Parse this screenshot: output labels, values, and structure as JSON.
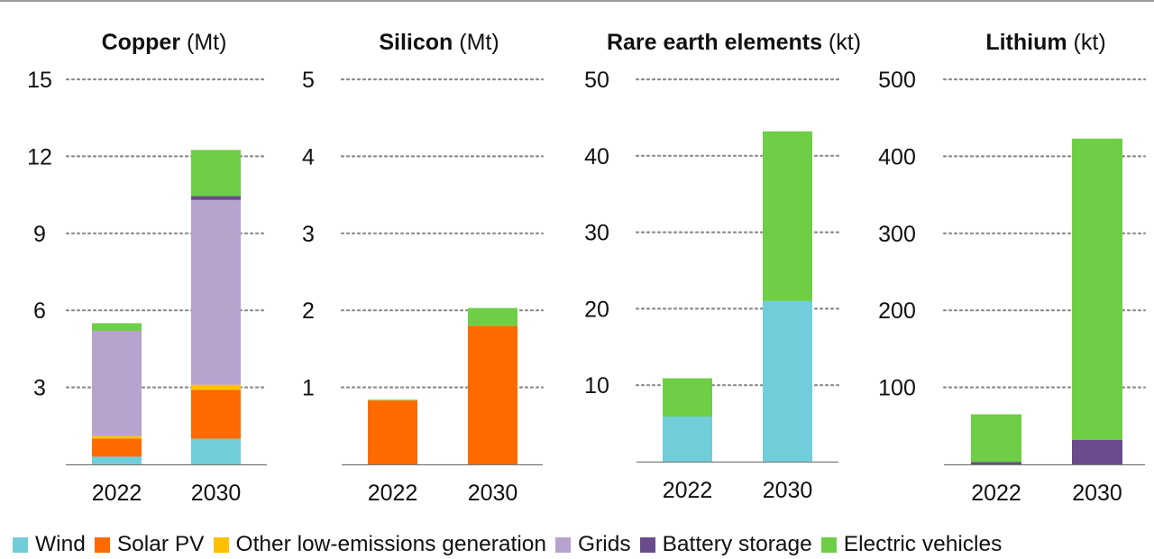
{
  "colors": {
    "Wind": "#72CDDB",
    "Solar PV": "#FF6A00",
    "Other low-emissions generation": "#FFC000",
    "Grids": "#B8A2CE",
    "Battery storage": "#6A4C8C",
    "Electric vehicles": "#6ECF46"
  },
  "legend": [
    {
      "label": "Wind",
      "key": "Wind"
    },
    {
      "label": "Solar PV",
      "key": "Solar PV"
    },
    {
      "label": "Other low-emissions generation",
      "key": "Other low-emissions generation"
    },
    {
      "label": "Grids",
      "key": "Grids"
    },
    {
      "label": "Battery storage",
      "key": "Battery storage"
    },
    {
      "label": "Electric vehicles",
      "key": "Electric vehicles"
    }
  ],
  "chart_data": [
    {
      "type": "bar",
      "stacked": true,
      "title_bold": "Copper",
      "title_unit": "(Mt)",
      "categories": [
        "2022",
        "2030"
      ],
      "ylim": [
        0,
        15
      ],
      "yticks": [
        3,
        6,
        9,
        12,
        15
      ],
      "grid": true,
      "series": [
        {
          "name": "Wind",
          "values": [
            0.3,
            1.0
          ]
        },
        {
          "name": "Solar PV",
          "values": [
            0.7,
            1.9
          ]
        },
        {
          "name": "Other low-emissions generation",
          "values": [
            0.1,
            0.2
          ]
        },
        {
          "name": "Grids",
          "values": [
            4.1,
            7.2
          ]
        },
        {
          "name": "Battery storage",
          "values": [
            0.0,
            0.15
          ]
        },
        {
          "name": "Electric vehicles",
          "values": [
            0.3,
            1.8
          ]
        }
      ]
    },
    {
      "type": "bar",
      "stacked": true,
      "title_bold": "Silicon",
      "title_unit": "(Mt)",
      "categories": [
        "2022",
        "2030"
      ],
      "ylim": [
        0,
        5
      ],
      "yticks": [
        1,
        2,
        3,
        4,
        5
      ],
      "grid": true,
      "series": [
        {
          "name": "Wind",
          "values": [
            0.0,
            0.0
          ]
        },
        {
          "name": "Solar PV",
          "values": [
            0.83,
            1.8
          ]
        },
        {
          "name": "Other low-emissions generation",
          "values": [
            0.0,
            0.0
          ]
        },
        {
          "name": "Grids",
          "values": [
            0.0,
            0.0
          ]
        },
        {
          "name": "Battery storage",
          "values": [
            0.0,
            0.0
          ]
        },
        {
          "name": "Electric vehicles",
          "values": [
            0.01,
            0.23
          ]
        }
      ]
    },
    {
      "type": "bar",
      "stacked": true,
      "title_bold": "Rare earth elements",
      "title_unit": "(kt)",
      "categories": [
        "2022",
        "2030"
      ],
      "ylim": [
        0,
        50
      ],
      "yticks": [
        10,
        20,
        30,
        40,
        50
      ],
      "grid": true,
      "series": [
        {
          "name": "Wind",
          "values": [
            5.9,
            21.0
          ]
        },
        {
          "name": "Solar PV",
          "values": [
            0,
            0
          ]
        },
        {
          "name": "Other low-emissions generation",
          "values": [
            0,
            0
          ]
        },
        {
          "name": "Grids",
          "values": [
            0,
            0
          ]
        },
        {
          "name": "Battery storage",
          "values": [
            0,
            0
          ]
        },
        {
          "name": "Electric vehicles",
          "values": [
            5.0,
            22.2
          ]
        }
      ]
    },
    {
      "type": "bar",
      "stacked": true,
      "title_bold": "Lithium",
      "title_unit": "(kt)",
      "categories": [
        "2022",
        "2030"
      ],
      "ylim": [
        0,
        500
      ],
      "yticks": [
        100,
        200,
        300,
        400,
        500
      ],
      "grid": true,
      "series": [
        {
          "name": "Wind",
          "values": [
            0,
            0
          ]
        },
        {
          "name": "Solar PV",
          "values": [
            0,
            0
          ]
        },
        {
          "name": "Other low-emissions generation",
          "values": [
            0,
            0
          ]
        },
        {
          "name": "Grids",
          "values": [
            0,
            0
          ]
        },
        {
          "name": "Battery storage",
          "values": [
            3,
            32
          ]
        },
        {
          "name": "Electric vehicles",
          "values": [
            62,
            391
          ]
        }
      ]
    }
  ]
}
